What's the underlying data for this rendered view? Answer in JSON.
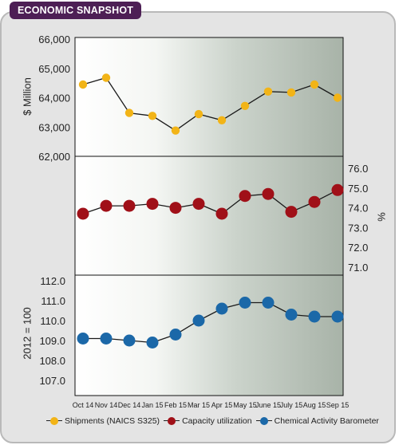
{
  "header": {
    "title": "ECONOMIC SNAPSHOT"
  },
  "colors": {
    "title_bg": "#4d1f55",
    "shipments": "#f2b417",
    "capacity": "#a01018",
    "cab": "#1b68a8"
  },
  "chart_data": [
    {
      "type": "line",
      "panel": "top",
      "ylabel": "$ Million",
      "ylim": [
        62000,
        66000
      ],
      "yticks": [
        "66,000",
        "65,000",
        "64,000",
        "63,000",
        "62,000"
      ],
      "series": [
        {
          "name": "Shipments (NAICS S325)",
          "values": [
            64450,
            64680,
            63480,
            63380,
            62880,
            63440,
            63230,
            63720,
            64210,
            64180,
            64450,
            64000
          ]
        }
      ]
    },
    {
      "type": "line",
      "panel": "middle",
      "ylabel": "%",
      "ylim": [
        71.0,
        76.0
      ],
      "yticks": [
        "76.0",
        "75.0",
        "74.0",
        "73.0",
        "72.0",
        "71.0"
      ],
      "series": [
        {
          "name": "Capacity utilization",
          "values": [
            73.7,
            74.1,
            74.1,
            74.2,
            74.0,
            74.2,
            73.7,
            74.6,
            74.7,
            73.8,
            74.3,
            74.9
          ]
        }
      ]
    },
    {
      "type": "line",
      "panel": "bottom",
      "ylabel": "2012 = 100",
      "ylim": [
        107.0,
        112.0
      ],
      "yticks": [
        "112.0",
        "111.0",
        "110.0",
        "109.0",
        "108.0",
        "107.0"
      ],
      "categories": [
        "Oct 14",
        "Nov 14",
        "Dec 14",
        "Jan 15",
        "Feb 15",
        "Mar 15",
        "Apr 15",
        "May 15",
        "June 15",
        "July 15",
        "Aug 15",
        "Sep 15"
      ],
      "series": [
        {
          "name": "Chemical Activity Barometer",
          "values": [
            109.1,
            109.1,
            109.0,
            108.9,
            109.3,
            110.0,
            110.6,
            110.9,
            110.9,
            110.3,
            110.2,
            110.2
          ]
        }
      ]
    }
  ],
  "legend": [
    {
      "label": "Shipments (NAICS S325)",
      "color": "#f2b417"
    },
    {
      "label": "Capacity utilization",
      "color": "#a01018"
    },
    {
      "label": "Chemical Activity Barometer",
      "color": "#1b68a8"
    }
  ]
}
